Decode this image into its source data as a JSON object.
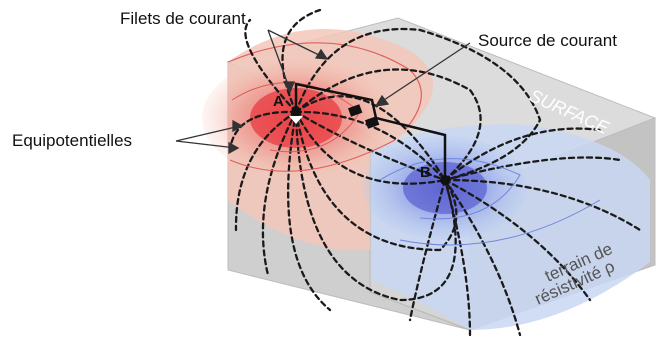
{
  "labels": {
    "current_lines": "Filets de courant",
    "current_source": "Source de courant",
    "equipotentials": "Equipotentielles",
    "surface": "SURFACE",
    "electrode_a": "A",
    "electrode_b": "B",
    "terrain_line1": "terrain de",
    "terrain_line2": "résistivité ρ"
  },
  "colors": {
    "positive_pole": "#e8343c",
    "negative_pole": "#4a6fd8",
    "field_lines": "#1a1a1a",
    "block_face": "#c9c9c9"
  }
}
